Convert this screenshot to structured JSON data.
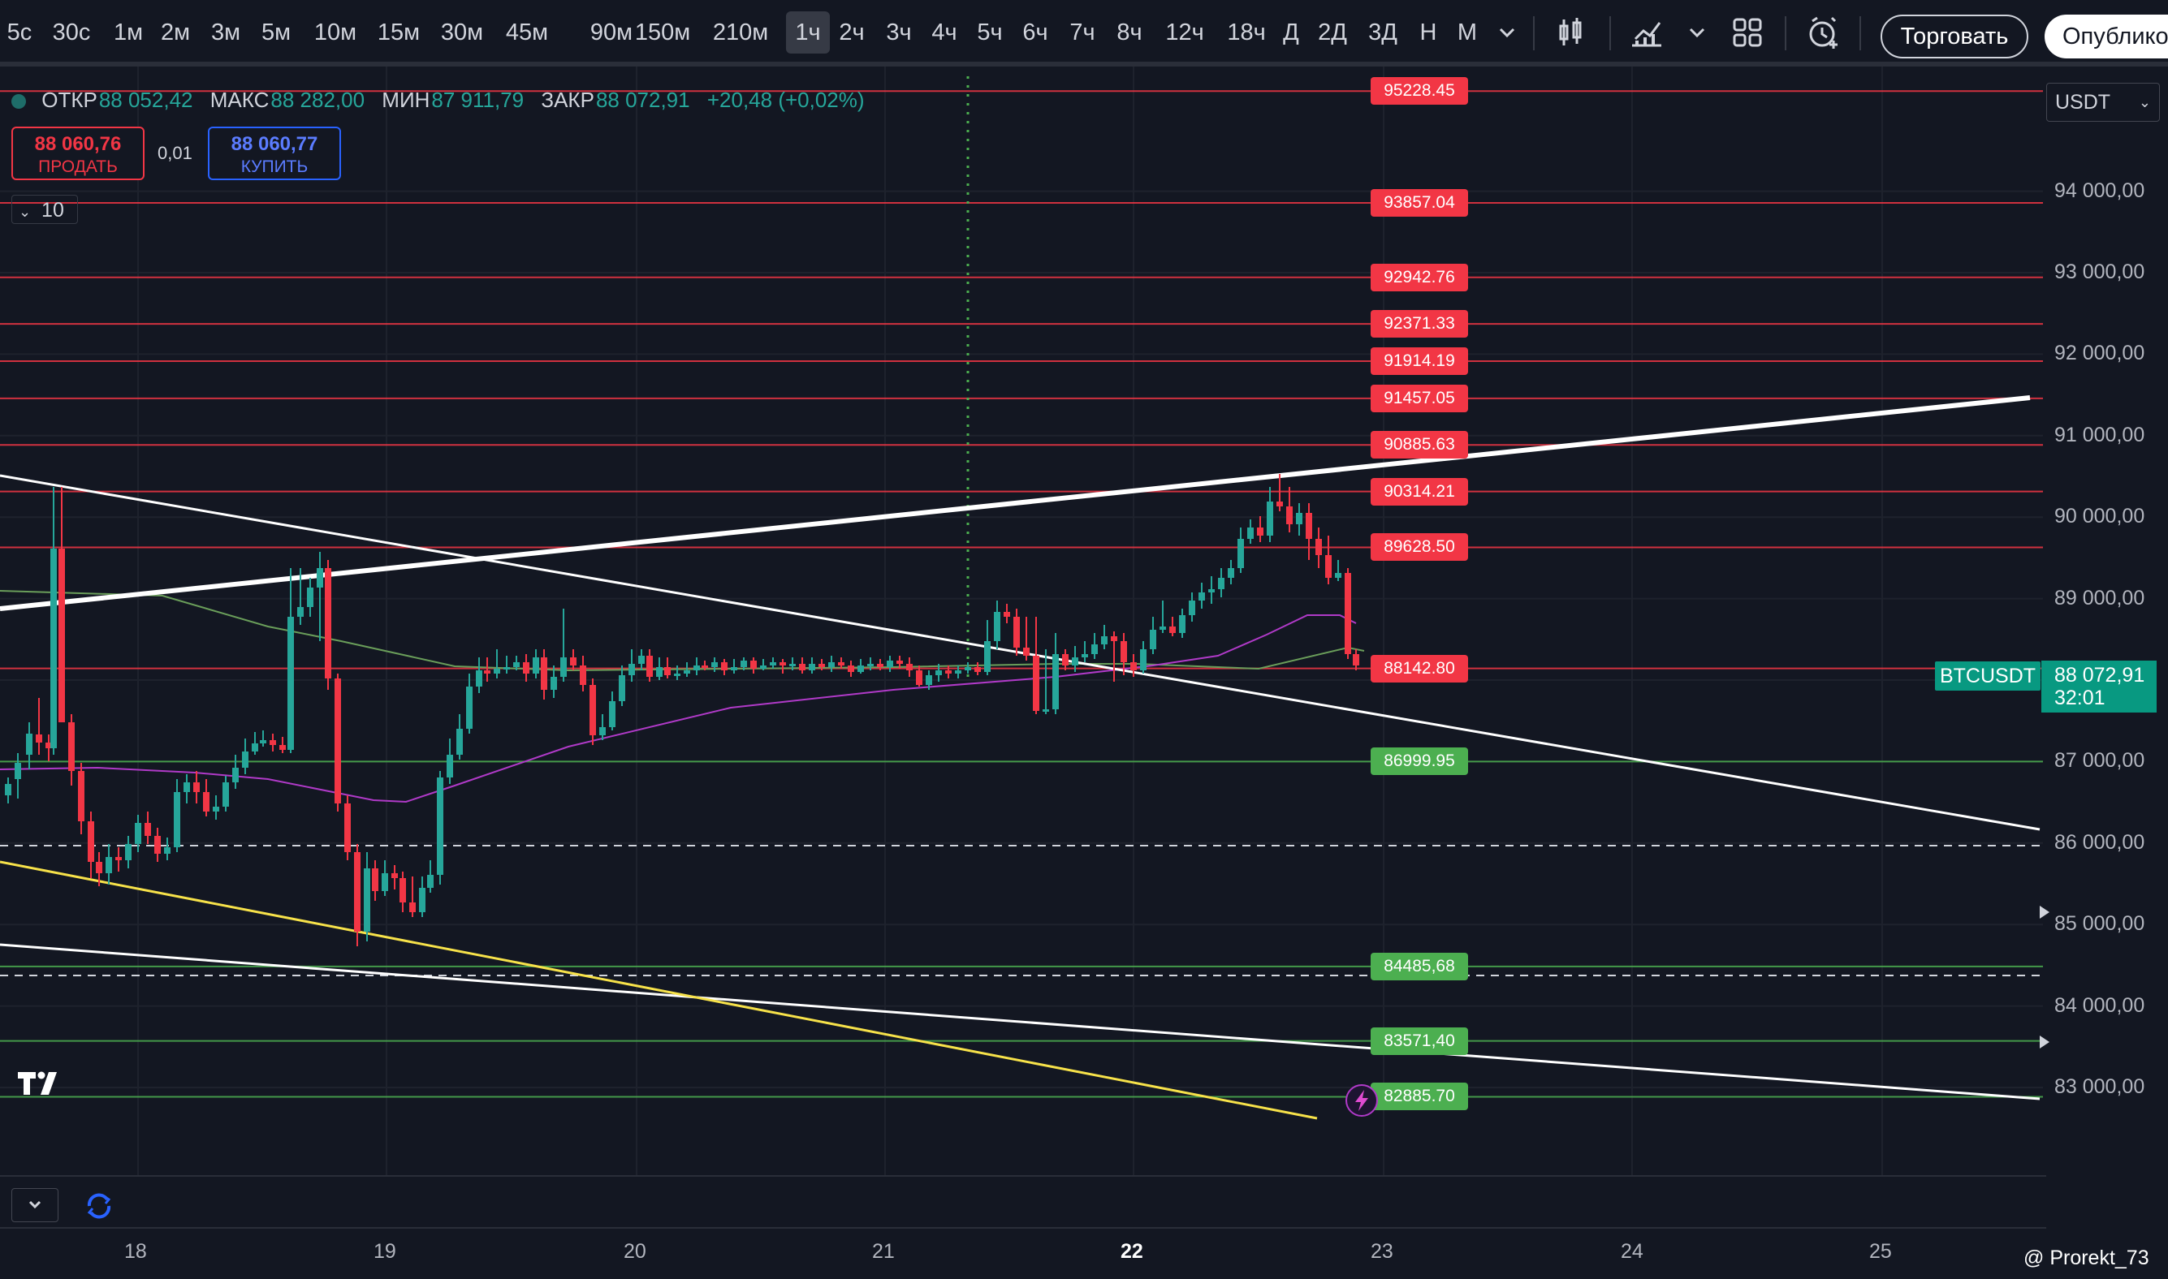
{
  "toolbar": {
    "timeframes": [
      "5с",
      "30с",
      "1м",
      "2м",
      "3м",
      "5м",
      "10м",
      "15м",
      "30м",
      "45м",
      "90м",
      "150м",
      "210м",
      "1ч",
      "2ч",
      "3ч",
      "4ч",
      "5ч",
      "6ч",
      "7ч",
      "8ч",
      "12ч",
      "18ч",
      "Д",
      "2Д",
      "3Д",
      "Н",
      "М"
    ],
    "active_timeframe": "1ч",
    "trade_label": "Торговать",
    "publish_label": "Опублико",
    "icons": [
      "chevron-down-icon",
      "candlestick-icon",
      "indicators-icon",
      "chevron-down-icon",
      "layout-icon",
      "alert-clock-icon"
    ]
  },
  "legend": {
    "open_label": "ОТКР",
    "open": "88 052,42",
    "high_label": "МАКС",
    "high": "88 282,00",
    "low_label": "МИН",
    "low": "87 911,79",
    "close_label": "ЗАКР",
    "close": "88 072,91",
    "change": "+20,48 (+0,02%)"
  },
  "order": {
    "sell_price": "88 060,76",
    "sell_label": "ПРОДАТЬ",
    "spread": "0,01",
    "buy_price": "88 060,77",
    "buy_label": "КУПИТЬ",
    "quantity": "10"
  },
  "currency": "USDT",
  "symbol": "BTCUSDT",
  "last_price": "88 072,91",
  "countdown": "32:01",
  "price_axis": [
    "94 000,00",
    "93 000,00",
    "92 000,00",
    "91 000,00",
    "90 000,00",
    "89 000,00",
    "87 000,00",
    "86 000,00",
    "85 000,00",
    "84 000,00",
    "83 000,00"
  ],
  "date_axis": [
    "18",
    "19",
    "20",
    "21",
    "22",
    "23",
    "24",
    "25"
  ],
  "levels": [
    {
      "value": 95228.45,
      "label": "95228.45",
      "kind": "resistance"
    },
    {
      "value": 93857.04,
      "label": "93857.04",
      "kind": "resistance"
    },
    {
      "value": 92942.76,
      "label": "92942.76",
      "kind": "resistance"
    },
    {
      "value": 92371.33,
      "label": "92371.33",
      "kind": "resistance"
    },
    {
      "value": 91914.19,
      "label": "91914.19",
      "kind": "resistance"
    },
    {
      "value": 91457.05,
      "label": "91457.05",
      "kind": "resistance"
    },
    {
      "value": 90885.63,
      "label": "90885.63",
      "kind": "resistance"
    },
    {
      "value": 90314.21,
      "label": "90314.21",
      "kind": "resistance"
    },
    {
      "value": 89628.5,
      "label": "89628.50",
      "kind": "resistance"
    },
    {
      "value": 88142.8,
      "label": "88142.80",
      "kind": "resistance"
    },
    {
      "value": 86999.95,
      "label": "86999.95",
      "kind": "support"
    },
    {
      "value": 84485.68,
      "label": "84485,68",
      "kind": "support"
    },
    {
      "value": 83571.4,
      "label": "83571,40",
      "kind": "support"
    },
    {
      "value": 82885.7,
      "label": "82885.70",
      "kind": "support"
    }
  ],
  "colors": {
    "up": "#26a69a",
    "down": "#f23645",
    "resistance": "#f23645",
    "support": "#4caf50",
    "trendline": "#ffffff",
    "yellow_line": "#f7e24a",
    "ma_purple": "#b03ac8",
    "ma_green": "#6a9e5a"
  },
  "watermark": "@ Prorekt_73"
}
